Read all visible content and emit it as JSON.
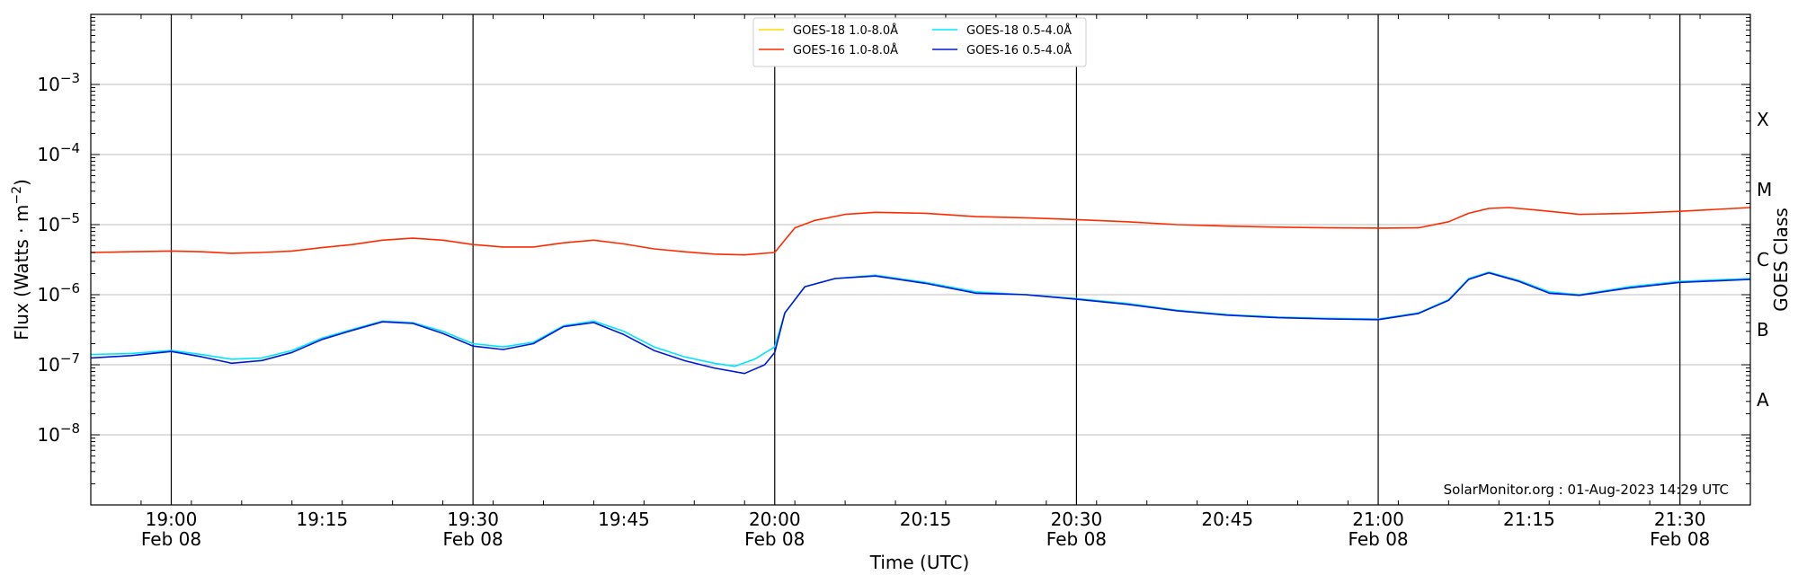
{
  "chart_data": {
    "type": "line",
    "title": "",
    "xlabel": "Time (UTC)",
    "ylabel": "Flux (Watts · m",
    "ylabel_exp": "−2",
    "ylabel_close": ")",
    "ylabel_right": "GOES Class",
    "yscale": "log",
    "ylim": [
      1e-09,
      0.01
    ],
    "xlim": [
      "18:52",
      "21:37"
    ],
    "grid": "horizontal",
    "legend_position": "top-center",
    "y_ticks": [
      {
        "value": 1e-08,
        "base": "10",
        "exp": "−8"
      },
      {
        "value": 1e-07,
        "base": "10",
        "exp": "−7"
      },
      {
        "value": 1e-06,
        "base": "10",
        "exp": "−6"
      },
      {
        "value": 1e-05,
        "base": "10",
        "exp": "−5"
      },
      {
        "value": 0.0001,
        "base": "10",
        "exp": "−4"
      },
      {
        "value": 0.001,
        "base": "10",
        "exp": "−3"
      }
    ],
    "x_ticks": [
      {
        "time": "19:00",
        "date": "Feb 08"
      },
      {
        "time": "19:15",
        "date": ""
      },
      {
        "time": "19:30",
        "date": "Feb 08"
      },
      {
        "time": "19:45",
        "date": ""
      },
      {
        "time": "20:00",
        "date": "Feb 08"
      },
      {
        "time": "20:15",
        "date": ""
      },
      {
        "time": "20:30",
        "date": "Feb 08"
      },
      {
        "time": "20:45",
        "date": ""
      },
      {
        "time": "21:00",
        "date": "Feb 08"
      },
      {
        "time": "21:15",
        "date": ""
      },
      {
        "time": "21:30",
        "date": "Feb 08"
      }
    ],
    "vlines": [
      "19:00",
      "19:30",
      "20:00",
      "20:30",
      "21:00",
      "21:30"
    ],
    "classes": [
      {
        "label": "X",
        "value": 0.000316
      },
      {
        "label": "M",
        "value": 3.16e-05
      },
      {
        "label": "C",
        "value": 3.16e-06
      },
      {
        "label": "B",
        "value": 3.16e-07
      },
      {
        "label": "A",
        "value": 3.16e-08
      }
    ],
    "series": [
      {
        "name": "GOES-18 1.0-8.0Å",
        "color": "#ffd700",
        "points": []
      },
      {
        "name": "GOES-16 1.0-8.0Å",
        "color": "#ff2a00",
        "points": [
          [
            "18:52",
            4e-06
          ],
          [
            "18:56",
            4.1e-06
          ],
          [
            "19:00",
            4.2e-06
          ],
          [
            "19:03",
            4.1e-06
          ],
          [
            "19:06",
            3.9e-06
          ],
          [
            "19:09",
            4e-06
          ],
          [
            "19:12",
            4.2e-06
          ],
          [
            "19:15",
            4.7e-06
          ],
          [
            "19:18",
            5.2e-06
          ],
          [
            "19:21",
            6e-06
          ],
          [
            "19:24",
            6.4e-06
          ],
          [
            "19:27",
            6e-06
          ],
          [
            "19:30",
            5.2e-06
          ],
          [
            "19:33",
            4.8e-06
          ],
          [
            "19:36",
            4.8e-06
          ],
          [
            "19:39",
            5.5e-06
          ],
          [
            "19:42",
            6e-06
          ],
          [
            "19:45",
            5.3e-06
          ],
          [
            "19:48",
            4.5e-06
          ],
          [
            "19:51",
            4.1e-06
          ],
          [
            "19:54",
            3.8e-06
          ],
          [
            "19:57",
            3.7e-06
          ],
          [
            "20:00",
            4e-06
          ],
          [
            "20:01",
            6e-06
          ],
          [
            "20:02",
            9e-06
          ],
          [
            "20:04",
            1.15e-05
          ],
          [
            "20:07",
            1.4e-05
          ],
          [
            "20:10",
            1.5e-05
          ],
          [
            "20:15",
            1.45e-05
          ],
          [
            "20:20",
            1.3e-05
          ],
          [
            "20:25",
            1.25e-05
          ],
          [
            "20:30",
            1.18e-05
          ],
          [
            "20:35",
            1.1e-05
          ],
          [
            "20:40",
            1e-05
          ],
          [
            "20:45",
            9.5e-06
          ],
          [
            "20:50",
            9.2e-06
          ],
          [
            "20:55",
            9e-06
          ],
          [
            "21:00",
            8.9e-06
          ],
          [
            "21:04",
            9e-06
          ],
          [
            "21:07",
            1.1e-05
          ],
          [
            "21:09",
            1.45e-05
          ],
          [
            "21:11",
            1.7e-05
          ],
          [
            "21:13",
            1.75e-05
          ],
          [
            "21:16",
            1.6e-05
          ],
          [
            "21:20",
            1.4e-05
          ],
          [
            "21:25",
            1.45e-05
          ],
          [
            "21:30",
            1.55e-05
          ],
          [
            "21:37",
            1.75e-05
          ]
        ]
      },
      {
        "name": "GOES-18 0.5-4.0Å",
        "color": "#00e5ff",
        "points": [
          [
            "18:52",
            1.4e-07
          ],
          [
            "18:56",
            1.45e-07
          ],
          [
            "19:00",
            1.6e-07
          ],
          [
            "19:03",
            1.4e-07
          ],
          [
            "19:06",
            1.2e-07
          ],
          [
            "19:09",
            1.25e-07
          ],
          [
            "19:12",
            1.6e-07
          ],
          [
            "19:15",
            2.4e-07
          ],
          [
            "19:18",
            3.2e-07
          ],
          [
            "19:21",
            4.2e-07
          ],
          [
            "19:24",
            4e-07
          ],
          [
            "19:27",
            3e-07
          ],
          [
            "19:30",
            2e-07
          ],
          [
            "19:33",
            1.8e-07
          ],
          [
            "19:36",
            2.1e-07
          ],
          [
            "19:39",
            3.6e-07
          ],
          [
            "19:42",
            4.2e-07
          ],
          [
            "19:45",
            3e-07
          ],
          [
            "19:48",
            1.8e-07
          ],
          [
            "19:51",
            1.3e-07
          ],
          [
            "19:54",
            1.05e-07
          ],
          [
            "19:56",
            9.5e-08
          ],
          [
            "19:58",
            1.2e-07
          ],
          [
            "20:00",
            1.8e-07
          ],
          [
            "20:01",
            5.5e-07
          ],
          [
            "20:03",
            1.3e-06
          ],
          [
            "20:06",
            1.7e-06
          ],
          [
            "20:10",
            1.9e-06
          ],
          [
            "20:15",
            1.5e-06
          ],
          [
            "20:20",
            1.1e-06
          ],
          [
            "20:25",
            1e-06
          ],
          [
            "20:30",
            8.8e-07
          ],
          [
            "20:35",
            7.5e-07
          ],
          [
            "20:40",
            6e-07
          ],
          [
            "20:45",
            5.2e-07
          ],
          [
            "20:50",
            4.8e-07
          ],
          [
            "20:55",
            4.6e-07
          ],
          [
            "21:00",
            4.5e-07
          ],
          [
            "21:04",
            5.5e-07
          ],
          [
            "21:07",
            8.5e-07
          ],
          [
            "21:09",
            1.7e-06
          ],
          [
            "21:11",
            2.1e-06
          ],
          [
            "21:14",
            1.6e-06
          ],
          [
            "21:17",
            1.1e-06
          ],
          [
            "21:20",
            1e-06
          ],
          [
            "21:25",
            1.3e-06
          ],
          [
            "21:30",
            1.55e-06
          ],
          [
            "21:37",
            1.7e-06
          ]
        ]
      },
      {
        "name": "GOES-16 0.5-4.0Å",
        "color": "#0018d6",
        "points": [
          [
            "18:52",
            1.25e-07
          ],
          [
            "18:56",
            1.35e-07
          ],
          [
            "19:00",
            1.55e-07
          ],
          [
            "19:03",
            1.3e-07
          ],
          [
            "19:06",
            1.05e-07
          ],
          [
            "19:09",
            1.15e-07
          ],
          [
            "19:12",
            1.5e-07
          ],
          [
            "19:15",
            2.3e-07
          ],
          [
            "19:18",
            3.1e-07
          ],
          [
            "19:21",
            4.1e-07
          ],
          [
            "19:24",
            3.9e-07
          ],
          [
            "19:27",
            2.8e-07
          ],
          [
            "19:30",
            1.85e-07
          ],
          [
            "19:33",
            1.65e-07
          ],
          [
            "19:36",
            2e-07
          ],
          [
            "19:39",
            3.5e-07
          ],
          [
            "19:42",
            4e-07
          ],
          [
            "19:45",
            2.7e-07
          ],
          [
            "19:48",
            1.6e-07
          ],
          [
            "19:51",
            1.15e-07
          ],
          [
            "19:54",
            9e-08
          ],
          [
            "19:57",
            7.5e-08
          ],
          [
            "19:59",
            1e-07
          ],
          [
            "20:00",
            1.5e-07
          ],
          [
            "20:01",
            5.5e-07
          ],
          [
            "20:03",
            1.3e-06
          ],
          [
            "20:06",
            1.7e-06
          ],
          [
            "20:10",
            1.85e-06
          ],
          [
            "20:15",
            1.45e-06
          ],
          [
            "20:20",
            1.05e-06
          ],
          [
            "20:25",
            1e-06
          ],
          [
            "20:30",
            8.6e-07
          ],
          [
            "20:35",
            7.3e-07
          ],
          [
            "20:40",
            5.9e-07
          ],
          [
            "20:45",
            5.1e-07
          ],
          [
            "20:50",
            4.7e-07
          ],
          [
            "20:55",
            4.5e-07
          ],
          [
            "21:00",
            4.4e-07
          ],
          [
            "21:04",
            5.4e-07
          ],
          [
            "21:07",
            8.3e-07
          ],
          [
            "21:09",
            1.65e-06
          ],
          [
            "21:11",
            2.05e-06
          ],
          [
            "21:14",
            1.55e-06
          ],
          [
            "21:17",
            1.05e-06
          ],
          [
            "21:20",
            9.8e-07
          ],
          [
            "21:25",
            1.25e-06
          ],
          [
            "21:30",
            1.5e-06
          ],
          [
            "21:37",
            1.65e-06
          ]
        ]
      }
    ]
  },
  "credit": "SolarMonitor.org : 01-Aug-2023 14:29 UTC"
}
